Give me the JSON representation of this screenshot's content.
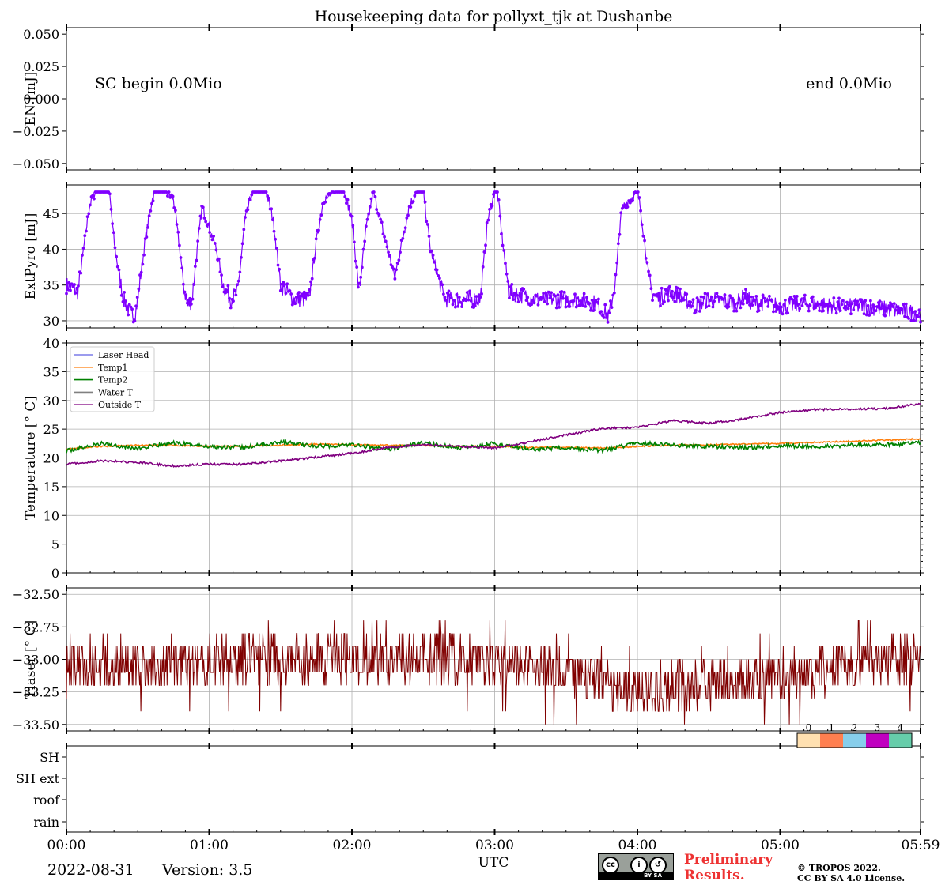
{
  "figure": {
    "title": "Housekeeping data for pollyxt_tjk at Dushanbe",
    "x_axis_label": "UTC",
    "x_tick_labels": [
      "00:00",
      "01:00",
      "02:00",
      "03:00",
      "04:00",
      "05:00",
      "05:59"
    ],
    "colors": {
      "extpyro": "#8000ff",
      "temp1": "#ff7f0e",
      "temp2": "#008000",
      "outside": "#800080",
      "laser_head": "#7b7be8",
      "water": "#808080",
      "tower": "#800000",
      "grid": "#b0b0b0"
    }
  },
  "footer": {
    "date": "2022-08-31",
    "version_label": "Version:",
    "version": "3.5",
    "preliminary_line1": "Preliminary",
    "preliminary_line2": "Results.",
    "copyright_line1": "© TROPOS 2022.",
    "copyright_line2": "CC BY SA 4.0 License.",
    "cc_badge_text": "BY   SA"
  },
  "chart_data": [
    {
      "type": "line",
      "panel": "energy",
      "ylabel": "EN [mJ]",
      "ylim": [
        -0.055,
        0.055
      ],
      "y_ticks": [
        "0.050",
        "0.025",
        "0.000",
        "−0.025",
        "−0.050"
      ],
      "grid": false,
      "annotations": [
        "SC begin 0.0Mio",
        "end 0.0Mio"
      ],
      "series": []
    },
    {
      "type": "scatter",
      "panel": "extpyro",
      "ylabel": "ExtPyro [mJ]",
      "ylim": [
        29,
        49
      ],
      "y_ticks": [
        "30",
        "35",
        "40",
        "45"
      ],
      "grid": true,
      "x_hours": [
        0.0,
        0.08,
        0.12,
        0.16,
        0.2,
        0.24,
        0.3,
        0.34,
        0.4,
        0.45,
        0.48,
        0.5,
        0.55,
        0.6,
        0.62,
        0.7,
        0.75,
        0.8,
        0.82,
        0.85,
        0.88,
        0.9,
        0.95,
        1.0,
        1.05,
        1.1,
        1.15,
        1.2,
        1.25,
        1.3,
        1.35,
        1.4,
        1.45,
        1.5,
        1.6,
        1.65,
        1.7,
        1.75,
        1.8,
        1.88,
        1.9,
        1.95,
        2.0,
        2.05,
        2.1,
        2.15,
        2.2,
        2.25,
        2.3,
        2.4,
        2.45,
        2.5,
        2.55,
        2.65,
        2.75,
        2.8,
        2.85,
        2.9,
        2.95,
        3.0,
        3.02,
        3.05,
        3.1,
        3.3,
        3.5,
        3.6,
        3.7,
        3.78,
        3.8,
        3.85,
        3.88,
        3.9,
        4.0,
        4.02,
        4.05,
        4.08,
        4.1,
        4.15,
        4.2,
        4.3,
        4.4,
        4.5,
        4.7,
        4.75,
        4.8,
        4.9,
        5.0,
        5.2,
        5.4,
        5.6,
        5.8,
        5.98
      ],
      "y_values": [
        35,
        34,
        40,
        46,
        48,
        48,
        48,
        40,
        33,
        31,
        31,
        33,
        41,
        47,
        48,
        48,
        47,
        39,
        35,
        32,
        33,
        37,
        46,
        43,
        40,
        35,
        33,
        34,
        44,
        48,
        48,
        48,
        44,
        35,
        33,
        33,
        33,
        41,
        47,
        48,
        48,
        48,
        44,
        34,
        43,
        48,
        44,
        40,
        36,
        46,
        48,
        48,
        40,
        33,
        33,
        33,
        33,
        33,
        44,
        48,
        48,
        42,
        34,
        33,
        33,
        33,
        32.5,
        31,
        30.5,
        36,
        44,
        46,
        48,
        46,
        41,
        36,
        34,
        33,
        34,
        33.5,
        32,
        33,
        32.5,
        33.5,
        32.5,
        32.5,
        32,
        32.5,
        32,
        32,
        31.5,
        31
      ]
    },
    {
      "type": "line",
      "panel": "temperature",
      "ylabel": "Temperature [$^\\circ C$]",
      "ylim": [
        0,
        40
      ],
      "y_ticks": [
        "0",
        "5",
        "10",
        "15",
        "20",
        "25",
        "30",
        "35",
        "40"
      ],
      "grid": true,
      "legend_position": "top-left",
      "x_hours": [
        0,
        0.25,
        0.5,
        0.75,
        1.0,
        1.25,
        1.5,
        1.75,
        2.0,
        2.25,
        2.5,
        2.75,
        3.0,
        3.25,
        3.5,
        3.75,
        4.0,
        4.25,
        4.5,
        4.75,
        5.0,
        5.25,
        5.5,
        5.75,
        5.98
      ],
      "series": [
        {
          "name": "Laser Head",
          "values": []
        },
        {
          "name": "Temp1",
          "values": [
            21.6,
            22.0,
            22.2,
            22.2,
            22.0,
            22.0,
            22.2,
            22.4,
            22.3,
            22.2,
            22.2,
            22.0,
            22.0,
            21.8,
            21.8,
            21.7,
            22.0,
            22.2,
            22.3,
            22.4,
            22.5,
            22.7,
            22.9,
            23.1,
            23.3
          ]
        },
        {
          "name": "Temp2",
          "values": [
            21.2,
            22.5,
            21.6,
            22.6,
            22.0,
            21.8,
            22.8,
            22.0,
            22.3,
            21.5,
            22.6,
            21.7,
            22.5,
            21.5,
            21.7,
            21.3,
            22.6,
            22.2,
            22.0,
            21.8,
            22.1,
            22.0,
            22.2,
            22.3,
            22.6
          ]
        },
        {
          "name": "Water T",
          "values": []
        },
        {
          "name": "Outside T",
          "values": [
            18.9,
            19.5,
            19.2,
            18.6,
            18.9,
            18.9,
            19.5,
            20.1,
            20.8,
            21.8,
            22.3,
            22.0,
            21.7,
            22.8,
            24.0,
            25.1,
            25.3,
            26.5,
            26.0,
            26.8,
            27.9,
            28.4,
            28.5,
            28.6,
            29.4
          ]
        }
      ]
    },
    {
      "type": "line",
      "panel": "tower",
      "ylabel": "Tlaser [$^\\circ C$]",
      "ylim": [
        -33.55,
        -32.45
      ],
      "y_ticks": [
        "−32.50",
        "−32.75",
        "−33.00",
        "−33.25",
        "−33.50"
      ],
      "grid": true,
      "x_hours": [
        0,
        0.5,
        1.0,
        1.5,
        2.0,
        2.5,
        3.0,
        3.5,
        4.0,
        4.5,
        5.0,
        5.5,
        5.98
      ],
      "mean_values": [
        -33.08,
        -33.05,
        -33.0,
        -33.0,
        -33.0,
        -32.98,
        -33.02,
        -33.08,
        -33.25,
        -33.18,
        -33.12,
        -33.05,
        -32.98
      ],
      "noise_range": [
        -33.5,
        -32.65
      ]
    },
    {
      "type": "heatmap",
      "panel": "status",
      "row_labels": [
        "SH",
        "SH ext",
        "roof",
        "rain"
      ],
      "colorbar_labels": [
        "0",
        "1",
        "2",
        "3",
        "4"
      ],
      "colorbar_colors": [
        "#ffe0b0",
        "#ff7f50",
        "#87ceeb",
        "#c000c0",
        "#66cdaa"
      ],
      "values": []
    }
  ]
}
